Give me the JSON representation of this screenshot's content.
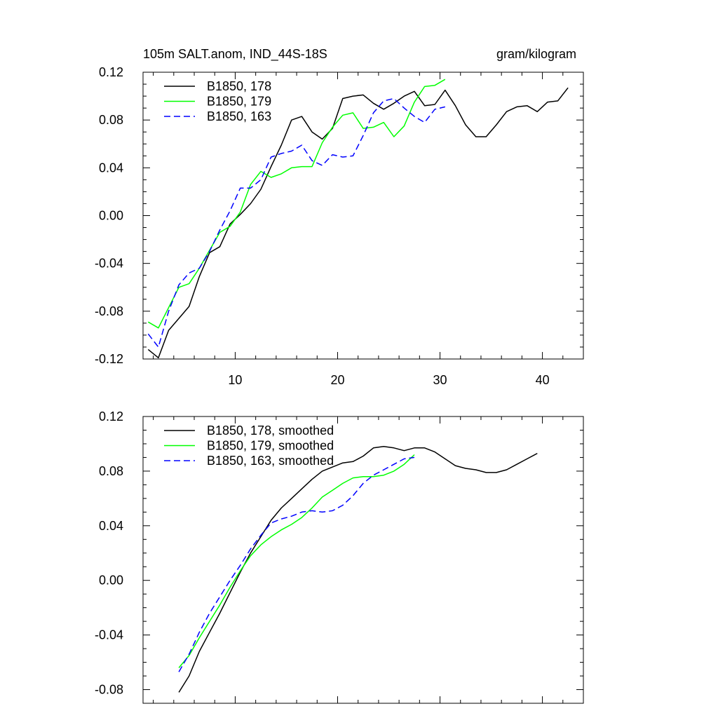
{
  "chart_data": [
    {
      "type": "line",
      "title": "105m SALT.anom, IND_44S-18S",
      "units": "gram/kilogram",
      "xlim": [
        1,
        44
      ],
      "ylim": [
        -0.12,
        0.12
      ],
      "xticks": [
        10,
        20,
        30,
        40
      ],
      "yticks": [
        -0.12,
        -0.08,
        -0.04,
        0.0,
        0.04,
        0.08,
        0.12
      ],
      "xtick_labels": [
        "10",
        "20",
        "30",
        "40"
      ],
      "ytick_labels": [
        "-0.12",
        "-0.08",
        "-0.04",
        "0.00",
        "0.04",
        "0.08",
        "0.12"
      ],
      "legend": "top-left",
      "series": [
        {
          "name": "B1850, 178",
          "color": "#000000",
          "dash": "solid",
          "x": [
            1.5,
            2.5,
            3.5,
            4.5,
            5.5,
            6.5,
            7.5,
            8.5,
            9.5,
            10.5,
            11.5,
            12.5,
            13.5,
            14.5,
            15.5,
            16.5,
            17.5,
            18.5,
            19.5,
            20.5,
            21.5,
            22.5,
            23.5,
            24.5,
            25.5,
            26.5,
            27.5,
            28.5,
            29.5,
            30.5,
            31.5,
            32.5,
            33.5,
            34.5,
            35.5,
            36.5,
            37.5,
            38.5,
            39.5,
            40.5,
            41.5,
            42.5
          ],
          "values": [
            -0.112,
            -0.119,
            -0.096,
            -0.086,
            -0.076,
            -0.051,
            -0.031,
            -0.026,
            -0.007,
            0.001,
            0.01,
            0.022,
            0.041,
            0.059,
            0.08,
            0.083,
            0.07,
            0.064,
            0.073,
            0.098,
            0.1,
            0.101,
            0.094,
            0.089,
            0.094,
            0.1,
            0.104,
            0.092,
            0.093,
            0.105,
            0.092,
            0.076,
            0.066,
            0.066,
            0.076,
            0.087,
            0.091,
            0.092,
            0.087,
            0.095,
            0.096,
            0.107
          ]
        },
        {
          "name": "B1850, 179",
          "color": "#00ff00",
          "dash": "solid",
          "x": [
            1.5,
            2.5,
            3.5,
            4.5,
            5.5,
            6.5,
            7.5,
            8.5,
            9.5,
            10.5,
            11.5,
            12.5,
            13.5,
            14.5,
            15.5,
            16.5,
            17.5,
            18.5,
            19.5,
            20.5,
            21.5,
            22.5,
            23.5,
            24.5,
            25.5,
            26.5,
            27.5,
            28.5,
            29.5,
            30.5
          ],
          "values": [
            -0.089,
            -0.094,
            -0.077,
            -0.06,
            -0.057,
            -0.044,
            -0.029,
            -0.014,
            -0.009,
            0.003,
            0.026,
            0.037,
            0.032,
            0.035,
            0.04,
            0.041,
            0.041,
            0.061,
            0.074,
            0.084,
            0.086,
            0.073,
            0.074,
            0.078,
            0.066,
            0.075,
            0.095,
            0.108,
            0.109,
            0.114
          ]
        },
        {
          "name": "B1850, 163",
          "color": "#0000ff",
          "dash": "dashed",
          "x": [
            1.5,
            2.5,
            3.5,
            4.5,
            5.5,
            6.5,
            7.5,
            8.5,
            9.5,
            10.5,
            11.5,
            12.5,
            13.5,
            14.5,
            15.5,
            16.5,
            17.5,
            18.5,
            19.5,
            20.5,
            21.5,
            22.5,
            23.5,
            24.5,
            25.5,
            26.5,
            27.5,
            28.5,
            29.5,
            30.5
          ],
          "values": [
            -0.099,
            -0.11,
            -0.08,
            -0.058,
            -0.048,
            -0.044,
            -0.03,
            -0.012,
            0.004,
            0.023,
            0.023,
            0.03,
            0.049,
            0.052,
            0.054,
            0.059,
            0.046,
            0.042,
            0.051,
            0.049,
            0.05,
            0.067,
            0.086,
            0.096,
            0.098,
            0.09,
            0.083,
            0.078,
            0.089,
            0.091
          ]
        }
      ]
    },
    {
      "type": "line",
      "title": "",
      "units": "",
      "xlim": [
        1,
        44
      ],
      "ylim": [
        -0.09,
        0.12
      ],
      "xticks": [
        10,
        20,
        30,
        40
      ],
      "yticks": [
        -0.08,
        -0.04,
        0.0,
        0.04,
        0.08,
        0.12
      ],
      "xtick_labels": [],
      "ytick_labels": [
        "-0.08",
        "-0.04",
        "0.00",
        "0.04",
        "0.08",
        "0.12"
      ],
      "legend": "top-left",
      "series": [
        {
          "name": "B1850, 178, smoothed",
          "color": "#000000",
          "dash": "solid",
          "x": [
            4.5,
            5.5,
            6.5,
            7.5,
            8.5,
            9.5,
            10.5,
            11.5,
            12.5,
            13.5,
            14.5,
            15.5,
            16.5,
            17.5,
            18.5,
            19.5,
            20.5,
            21.5,
            22.5,
            23.5,
            24.5,
            25.5,
            26.5,
            27.5,
            28.5,
            29.5,
            30.5,
            31.5,
            32.5,
            33.5,
            34.5,
            35.5,
            36.5,
            37.5,
            38.5,
            39.5
          ],
          "values": [
            -0.082,
            -0.07,
            -0.052,
            -0.038,
            -0.024,
            -0.009,
            0.006,
            0.02,
            0.032,
            0.044,
            0.053,
            0.06,
            0.067,
            0.074,
            0.08,
            0.083,
            0.086,
            0.087,
            0.091,
            0.097,
            0.098,
            0.097,
            0.095,
            0.097,
            0.097,
            0.094,
            0.089,
            0.084,
            0.082,
            0.081,
            0.079,
            0.079,
            0.081,
            0.085,
            0.089,
            0.093
          ]
        },
        {
          "name": "B1850, 179, smoothed",
          "color": "#00ff00",
          "dash": "solid",
          "x": [
            4.5,
            5.5,
            6.5,
            7.5,
            8.5,
            9.5,
            10.5,
            11.5,
            12.5,
            13.5,
            14.5,
            15.5,
            16.5,
            17.5,
            18.5,
            19.5,
            20.5,
            21.5,
            22.5,
            23.5,
            24.5,
            25.5,
            26.5,
            27.5
          ],
          "values": [
            -0.064,
            -0.055,
            -0.042,
            -0.03,
            -0.018,
            -0.005,
            0.007,
            0.018,
            0.026,
            0.032,
            0.037,
            0.041,
            0.046,
            0.053,
            0.061,
            0.066,
            0.071,
            0.075,
            0.076,
            0.076,
            0.077,
            0.08,
            0.085,
            0.092
          ]
        },
        {
          "name": "B1850, 163, smoothed",
          "color": "#0000ff",
          "dash": "dashed",
          "x": [
            4.5,
            5.5,
            6.5,
            7.5,
            8.5,
            9.5,
            10.5,
            11.5,
            12.5,
            13.5,
            14.5,
            15.5,
            16.5,
            17.5,
            18.5,
            19.5,
            20.5,
            21.5,
            22.5,
            23.5,
            24.5,
            25.5,
            26.5,
            27.5
          ],
          "values": [
            -0.067,
            -0.054,
            -0.038,
            -0.024,
            -0.012,
            0.0,
            0.011,
            0.023,
            0.033,
            0.042,
            0.045,
            0.047,
            0.05,
            0.051,
            0.05,
            0.051,
            0.055,
            0.062,
            0.071,
            0.077,
            0.081,
            0.085,
            0.089,
            0.09
          ]
        }
      ]
    }
  ]
}
